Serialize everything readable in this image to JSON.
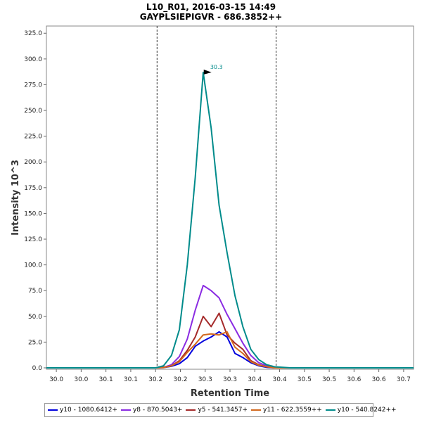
{
  "chart_data": {
    "type": "line",
    "title": "L10_R01, 2016-03-15 14:49",
    "subtitle": "GAYPLSIEPIGVR - 686.3852++",
    "xlabel": "Retention Time",
    "ylabel": "Intensity 10^3",
    "xlim": [
      29.96,
      30.7
    ],
    "ylim": [
      0,
      332
    ],
    "x_ticks": [
      {
        "value": 29.98,
        "label": "30.0"
      },
      {
        "value": 30.03,
        "label": "30.0"
      },
      {
        "value": 30.08,
        "label": "30.1"
      },
      {
        "value": 30.13,
        "label": "30.1"
      },
      {
        "value": 30.18,
        "label": "30.2"
      },
      {
        "value": 30.23,
        "label": "30.2"
      },
      {
        "value": 30.28,
        "label": "30.3"
      },
      {
        "value": 30.33,
        "label": "30.3"
      },
      {
        "value": 30.38,
        "label": "30.4"
      },
      {
        "value": 30.43,
        "label": "30.4"
      },
      {
        "value": 30.48,
        "label": "30.5"
      },
      {
        "value": 30.53,
        "label": "30.5"
      },
      {
        "value": 30.58,
        "label": "30.6"
      },
      {
        "value": 30.63,
        "label": "30.6"
      },
      {
        "value": 30.68,
        "label": "30.7"
      }
    ],
    "y_ticks": [
      "0.0",
      "25.0",
      "50.0",
      "75.0",
      "100.0",
      "125.0",
      "150.0",
      "175.0",
      "200.0",
      "225.0",
      "250.0",
      "275.0",
      "300.0",
      "325.0"
    ],
    "boundaries": [
      30.183,
      30.423
    ],
    "peak_annotation": {
      "x": 30.297,
      "y": 287,
      "label": "30.3"
    },
    "x": [
      29.96,
      30.18,
      30.196,
      30.212,
      30.228,
      30.244,
      30.26,
      30.276,
      30.292,
      30.308,
      30.324,
      30.34,
      30.356,
      30.372,
      30.388,
      30.404,
      30.42,
      30.436,
      30.452,
      30.7
    ],
    "series": [
      {
        "name": "y10 - 1080.6412+",
        "color": "#0000dd",
        "values": [
          0,
          0,
          0.3,
          1.5,
          4,
          10,
          21,
          26,
          30,
          35,
          30,
          14,
          10,
          5,
          2,
          0.5,
          0,
          0,
          0,
          0
        ]
      },
      {
        "name": "y8 - 870.5043+",
        "color": "#8a2be2",
        "values": [
          0,
          0,
          0.5,
          3,
          11,
          28,
          56,
          80,
          75,
          68,
          52,
          38,
          24,
          12,
          5,
          2,
          0.5,
          0,
          0,
          0
        ]
      },
      {
        "name": "y5 - 541.3457+",
        "color": "#a52a2a",
        "values": [
          0,
          0,
          0.5,
          2,
          7,
          17,
          30,
          50,
          40,
          53,
          32,
          24,
          18,
          7,
          3,
          1,
          0,
          0,
          0,
          0
        ]
      },
      {
        "name": "y11 - 622.3559++",
        "color": "#d2691e",
        "values": [
          0,
          0,
          0.3,
          2,
          6,
          15,
          23,
          32,
          33,
          32,
          35,
          20,
          14,
          6,
          2.5,
          1,
          0,
          0,
          0,
          0
        ]
      },
      {
        "name": "y10 - 540.8242++",
        "color": "#008b8b",
        "values": [
          0,
          0,
          2,
          12,
          37,
          100,
          185,
          287,
          233,
          158,
          112,
          70,
          40,
          18,
          8,
          3,
          1,
          0.5,
          0,
          0
        ]
      }
    ]
  }
}
